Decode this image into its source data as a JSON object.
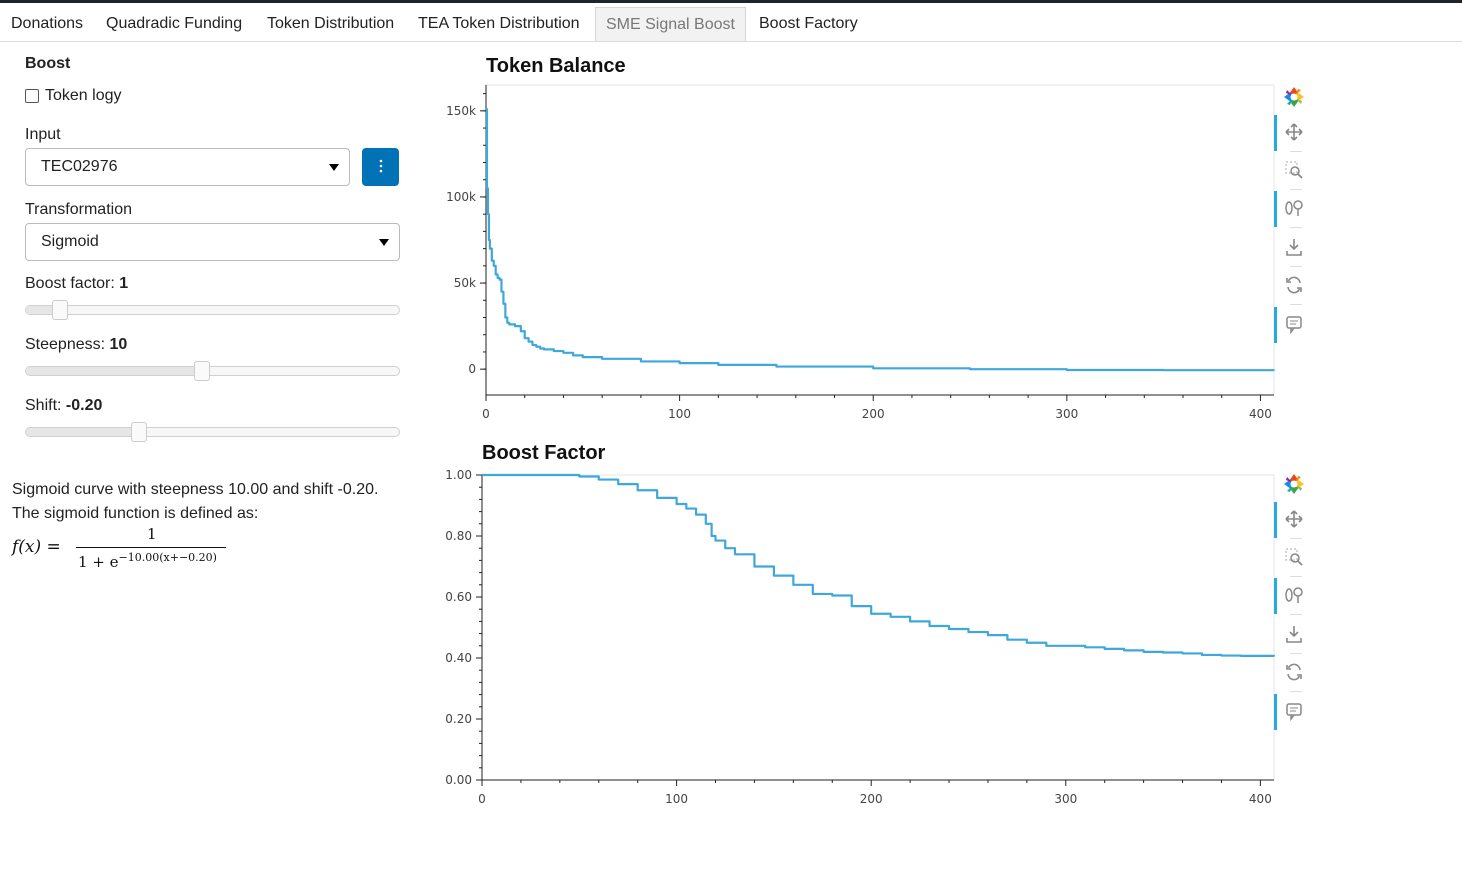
{
  "tabs": [
    {
      "label": "Donations",
      "active": false
    },
    {
      "label": "Quadradic Funding",
      "active": false
    },
    {
      "label": "Token Distribution",
      "active": false
    },
    {
      "label": "TEA Token Distribution",
      "active": false
    },
    {
      "label": "SME Signal Boost",
      "active": true
    },
    {
      "label": "Boost Factory",
      "active": false
    }
  ],
  "sidebar": {
    "title": "Boost",
    "checkbox": {
      "label": "Token logy",
      "checked": false
    },
    "input": {
      "label": "Input",
      "value": "TEC02976",
      "menu_icon": "vertical-dots-icon"
    },
    "transformation": {
      "label": "Transformation",
      "value": "Sigmoid"
    },
    "boost_factor": {
      "label": "Boost factor: ",
      "value": "1",
      "fraction": 0.09
    },
    "steepness": {
      "label": "Steepness: ",
      "value": "10",
      "fraction": 0.47
    },
    "shift": {
      "label": "Shift: ",
      "value": "-0.20",
      "fraction": 0.3
    }
  },
  "description": {
    "line1": "Sigmoid curve with steepness 10.00 and shift -0.20.",
    "line2": "The sigmoid function is defined as:",
    "formula_lhs": "f(x) =",
    "formula_num": "1",
    "formula_den_base": "1 + e",
    "formula_den_exp": "−10.00(x+−0.20)"
  },
  "colors": {
    "line": "#3ea7dc",
    "accent": "#26aae1",
    "button": "#0072b5"
  },
  "toolbar_icons": [
    "bokeh-logo-icon",
    "pan-icon",
    "box-zoom-icon",
    "wheel-zoom-icon",
    "save-icon",
    "reset-icon",
    "hover-icon"
  ],
  "chart_data": [
    {
      "type": "line",
      "title": "Token Balance",
      "xlim": [
        0,
        407
      ],
      "ylim": [
        -15000,
        165000
      ],
      "xticks": [
        0,
        100,
        200,
        300,
        400
      ],
      "xtick_labels": [
        "0",
        "100",
        "200",
        "300",
        "400"
      ],
      "yticks": [
        0,
        50000,
        100000,
        150000
      ],
      "ytick_labels": [
        "0",
        "50k",
        "100k",
        "150k"
      ],
      "series": [
        {
          "x": [
            0,
            0.5,
            1,
            1.5,
            2,
            3,
            4,
            5,
            6,
            7,
            8,
            9,
            10,
            11,
            12,
            15,
            18,
            20,
            22,
            24,
            26,
            28,
            30,
            35,
            40,
            45,
            50,
            60,
            80,
            100,
            120,
            150,
            200,
            250,
            300,
            350,
            407
          ],
          "y": [
            151000,
            105000,
            90000,
            75000,
            70000,
            63000,
            60000,
            55000,
            53000,
            52000,
            45000,
            38000,
            30000,
            27000,
            26000,
            25000,
            22000,
            18000,
            16000,
            14000,
            13000,
            12000,
            11500,
            10500,
            9500,
            8000,
            7000,
            6000,
            4500,
            3500,
            2500,
            1500,
            500,
            0,
            -500,
            -600,
            -700
          ]
        }
      ]
    },
    {
      "type": "line",
      "title": "Boost Factor",
      "xlim": [
        0,
        407
      ],
      "ylim": [
        0,
        1
      ],
      "xticks": [
        0,
        100,
        200,
        300,
        400
      ],
      "xtick_labels": [
        "0",
        "100",
        "200",
        "300",
        "400"
      ],
      "yticks": [
        0,
        0.2,
        0.4,
        0.6,
        0.8,
        1.0
      ],
      "ytick_labels": [
        "0.00",
        "0.20",
        "0.40",
        "0.60",
        "0.80",
        "1.00"
      ],
      "series": [
        {
          "x": [
            0,
            20,
            40,
            50,
            60,
            70,
            80,
            90,
            100,
            105,
            110,
            115,
            118,
            120,
            125,
            130,
            140,
            150,
            160,
            170,
            180,
            190,
            200,
            210,
            220,
            230,
            240,
            250,
            260,
            270,
            280,
            290,
            300,
            310,
            320,
            330,
            340,
            350,
            360,
            370,
            380,
            390,
            407
          ],
          "y": [
            1.0,
            1.0,
            1.0,
            0.995,
            0.985,
            0.97,
            0.95,
            0.925,
            0.905,
            0.89,
            0.87,
            0.84,
            0.8,
            0.785,
            0.76,
            0.74,
            0.7,
            0.67,
            0.64,
            0.61,
            0.605,
            0.57,
            0.545,
            0.535,
            0.52,
            0.505,
            0.495,
            0.485,
            0.475,
            0.46,
            0.45,
            0.44,
            0.44,
            0.435,
            0.43,
            0.425,
            0.42,
            0.418,
            0.415,
            0.41,
            0.408,
            0.407,
            0.405
          ]
        }
      ]
    }
  ]
}
